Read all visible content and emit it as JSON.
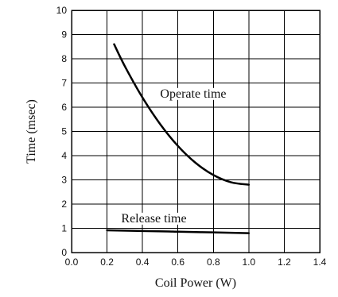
{
  "chart_data": {
    "type": "line",
    "title": "",
    "xlabel": "Coil Power (W)",
    "ylabel": "Time (msec)",
    "xlim": [
      0.0,
      1.4
    ],
    "ylim": [
      0,
      10
    ],
    "x_ticks": [
      "0.0",
      "0.2",
      "0.4",
      "0.6",
      "0.8",
      "1.0",
      "1.2",
      "1.4"
    ],
    "y_ticks": [
      "0",
      "1",
      "2",
      "3",
      "4",
      "5",
      "6",
      "7",
      "8",
      "9",
      "10"
    ],
    "grid": true,
    "series": [
      {
        "name": "Operate time",
        "x": [
          0.24,
          0.3,
          0.4,
          0.5,
          0.6,
          0.7,
          0.8,
          0.9,
          1.0
        ],
        "y": [
          8.6,
          7.7,
          6.4,
          5.3,
          4.4,
          3.7,
          3.2,
          2.9,
          2.8
        ]
      },
      {
        "name": "Release time",
        "x": [
          0.2,
          0.4,
          0.55,
          0.6,
          0.8,
          1.0
        ],
        "y": [
          0.92,
          0.89,
          0.87,
          0.86,
          0.83,
          0.8
        ]
      }
    ],
    "annotations": [
      {
        "text": "Operate time",
        "x": 0.5,
        "y": 6.4
      },
      {
        "text": "Release time",
        "x": 0.28,
        "y": 1.25
      }
    ],
    "colors": {
      "line": "#000000",
      "grid": "#000000",
      "background": "#ffffff"
    }
  }
}
